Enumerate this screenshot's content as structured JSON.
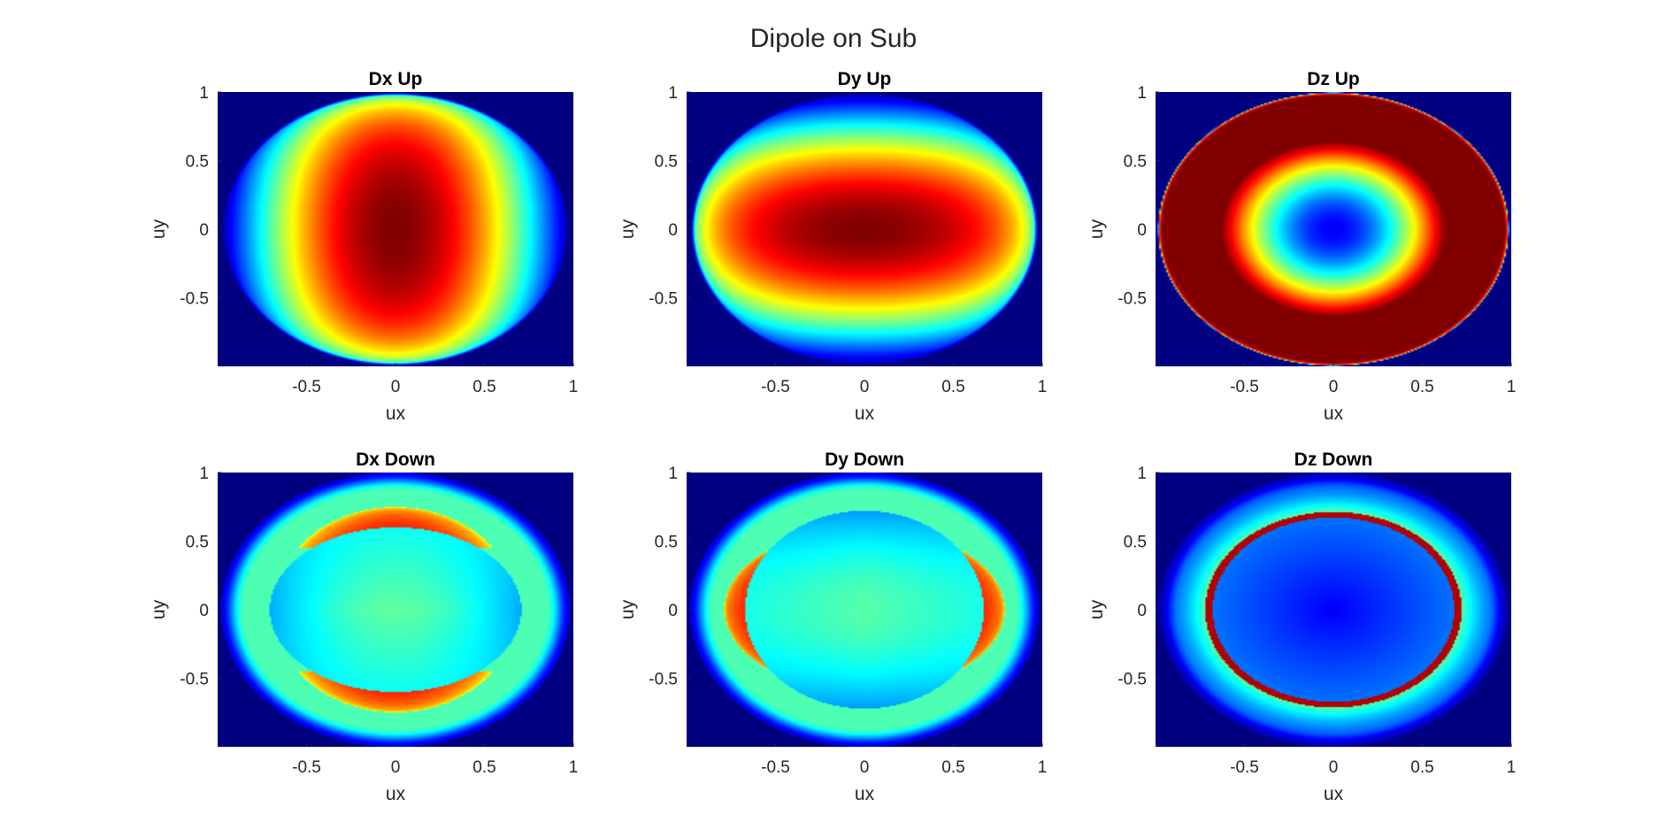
{
  "figure": {
    "title": "Dipole on Sub"
  },
  "chart_data": [
    {
      "type": "heatmap",
      "title": "Dx Up",
      "xlabel": "ux",
      "ylabel": "uy",
      "xlim": [
        -1,
        1
      ],
      "ylim": [
        -1,
        1
      ],
      "xticks": [
        -0.5,
        0,
        0.5,
        1
      ],
      "xtick_labels": [
        "-0.5",
        "0",
        "0.5",
        "1"
      ],
      "yticks": [
        -0.5,
        0,
        0.5,
        1
      ],
      "ytick_labels": [
        "-0.5",
        "0",
        "0.5",
        "1"
      ],
      "colormap": "jet",
      "pattern": "dx_up"
    },
    {
      "type": "heatmap",
      "title": "Dy Up",
      "xlabel": "ux",
      "ylabel": "uy",
      "xlim": [
        -1,
        1
      ],
      "ylim": [
        -1,
        1
      ],
      "xticks": [
        -0.5,
        0,
        0.5,
        1
      ],
      "xtick_labels": [
        "-0.5",
        "0",
        "0.5",
        "1"
      ],
      "yticks": [
        -0.5,
        0,
        0.5,
        1
      ],
      "ytick_labels": [
        "-0.5",
        "0",
        "0.5",
        "1"
      ],
      "colormap": "jet",
      "pattern": "dy_up"
    },
    {
      "type": "heatmap",
      "title": "Dz Up",
      "xlabel": "ux",
      "ylabel": "uy",
      "xlim": [
        -1,
        1
      ],
      "ylim": [
        -1,
        1
      ],
      "xticks": [
        -0.5,
        0,
        0.5,
        1
      ],
      "xtick_labels": [
        "-0.5",
        "0",
        "0.5",
        "1"
      ],
      "yticks": [
        -0.5,
        0,
        0.5,
        1
      ],
      "ytick_labels": [
        "-0.5",
        "0",
        "0.5",
        "1"
      ],
      "colormap": "jet",
      "pattern": "dz_up"
    },
    {
      "type": "heatmap",
      "title": "Dx Down",
      "xlabel": "ux",
      "ylabel": "uy",
      "xlim": [
        -1,
        1
      ],
      "ylim": [
        -1,
        1
      ],
      "xticks": [
        -0.5,
        0,
        0.5,
        1
      ],
      "xtick_labels": [
        "-0.5",
        "0",
        "0.5",
        "1"
      ],
      "yticks": [
        -0.5,
        0,
        0.5,
        1
      ],
      "ytick_labels": [
        "-0.5",
        "0",
        "0.5",
        "1"
      ],
      "colormap": "jet",
      "pattern": "dx_down"
    },
    {
      "type": "heatmap",
      "title": "Dy Down",
      "xlabel": "ux",
      "ylabel": "uy",
      "xlim": [
        -1,
        1
      ],
      "ylim": [
        -1,
        1
      ],
      "xticks": [
        -0.5,
        0,
        0.5,
        1
      ],
      "xtick_labels": [
        "-0.5",
        "0",
        "0.5",
        "1"
      ],
      "yticks": [
        -0.5,
        0,
        0.5,
        1
      ],
      "ytick_labels": [
        "-0.5",
        "0",
        "0.5",
        "1"
      ],
      "colormap": "jet",
      "pattern": "dy_down"
    },
    {
      "type": "heatmap",
      "title": "Dz Down",
      "xlabel": "ux",
      "ylabel": "uy",
      "xlim": [
        -1,
        1
      ],
      "ylim": [
        -1,
        1
      ],
      "xticks": [
        -0.5,
        0,
        0.5,
        1
      ],
      "xtick_labels": [
        "-0.5",
        "0",
        "0.5",
        "1"
      ],
      "yticks": [
        -0.5,
        0,
        0.5,
        1
      ],
      "ytick_labels": [
        "-0.5",
        "0",
        "0.5",
        "1"
      ],
      "colormap": "jet",
      "pattern": "dz_down"
    }
  ]
}
